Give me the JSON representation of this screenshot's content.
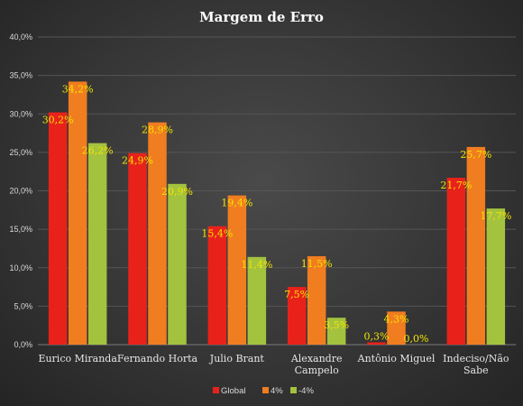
{
  "chart_data": {
    "type": "bar",
    "title": "Margem de Erro",
    "categories": [
      [
        "Eurico Miranda"
      ],
      [
        "Fernando Horta"
      ],
      [
        "Julio Brant"
      ],
      [
        "Alexandre",
        "Campelo"
      ],
      [
        "Antônio Miguel"
      ],
      [
        "Indeciso/Não",
        "Sabe"
      ]
    ],
    "series": [
      {
        "name": "Global",
        "color": "#e8221b",
        "values": [
          30.2,
          24.9,
          15.4,
          7.5,
          0.3,
          21.7
        ],
        "labels": [
          "30,2%",
          "24,9%",
          "15,4%",
          "7,5%",
          "0,3%",
          "21,7%"
        ]
      },
      {
        "name": "4%",
        "color": "#f07d20",
        "values": [
          34.2,
          28.9,
          19.4,
          11.5,
          4.3,
          25.7
        ],
        "labels": [
          "34,2%",
          "28,9%",
          "19,4%",
          "11,5%",
          "4,3%",
          "25,7%"
        ]
      },
      {
        "name": "-4%",
        "color": "#a3c23e",
        "values": [
          26.2,
          20.9,
          11.4,
          3.5,
          0.0,
          17.7
        ],
        "labels": [
          "26,2%",
          "20,9%",
          "11,4%",
          "3,5%",
          "0,0%",
          "17,7%"
        ]
      }
    ],
    "ylim": [
      0,
      40
    ],
    "yticks": [
      0,
      5,
      10,
      15,
      20,
      25,
      30,
      35,
      40
    ],
    "ytick_labels": [
      "0,0%",
      "5,0%",
      "10,0%",
      "15,0%",
      "20,0%",
      "25,0%",
      "30,0%",
      "35,0%",
      "40,0%"
    ],
    "grid": true,
    "legend_position": "bottom"
  }
}
